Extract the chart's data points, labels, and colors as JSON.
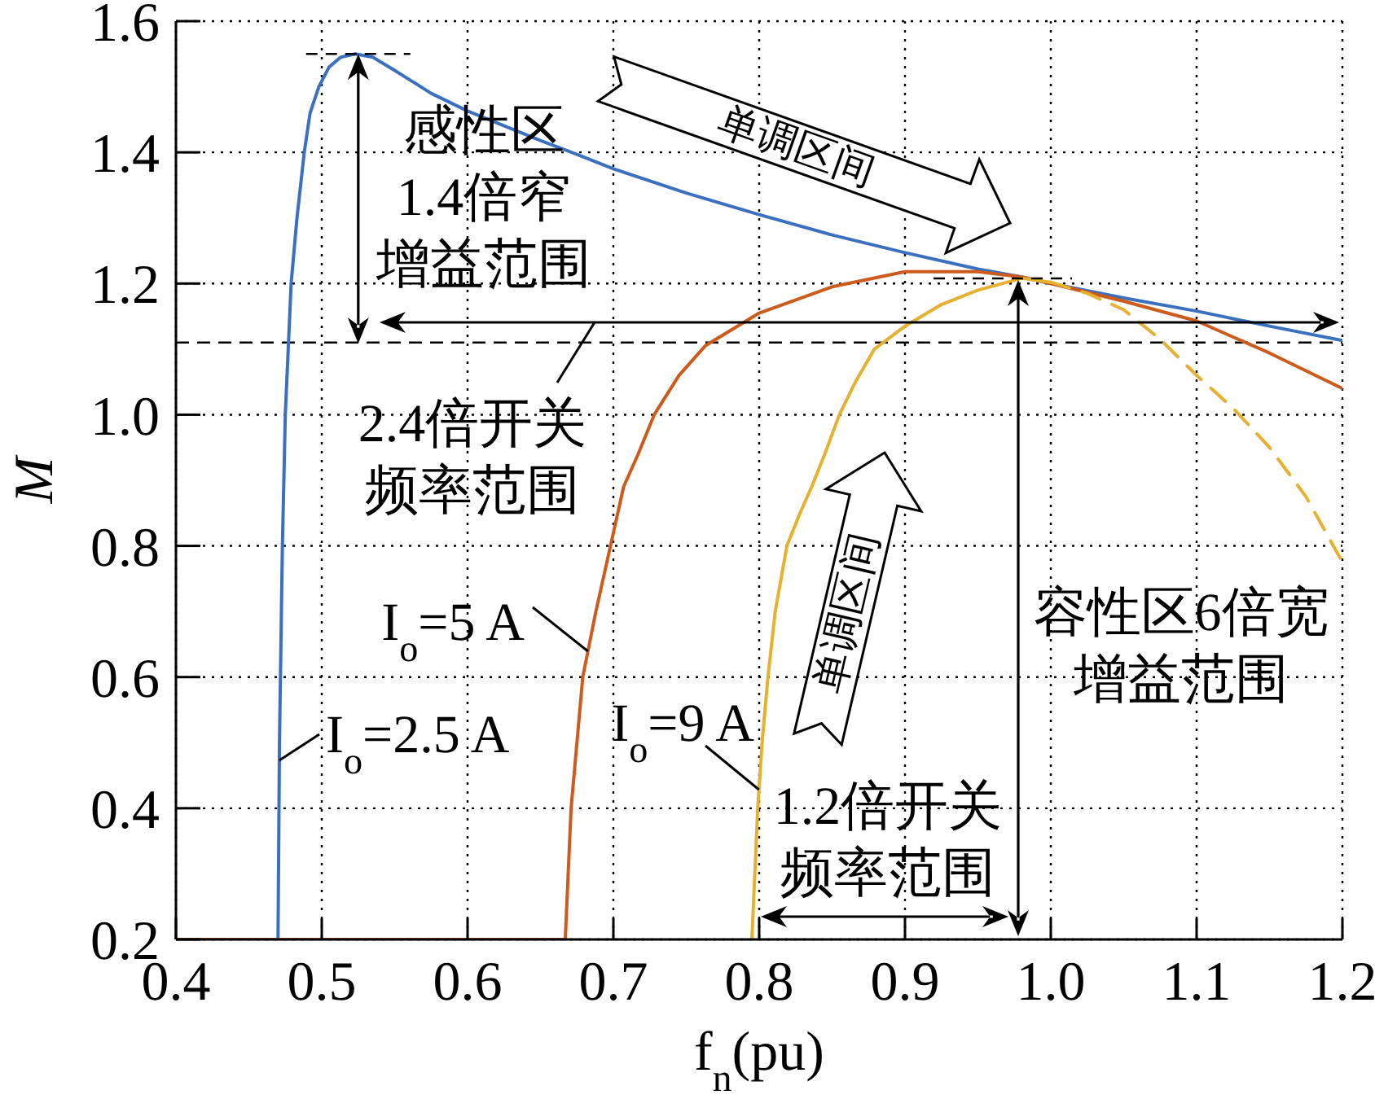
{
  "chart_data": {
    "type": "line",
    "xlabel": "f$_{n}$(pu)",
    "ylabel": "M",
    "xlim": [
      0.4,
      1.2
    ],
    "ylim": [
      0.2,
      1.6
    ],
    "xticks": [
      0.4,
      0.5,
      0.6,
      0.7,
      0.8,
      0.9,
      {
        "value": 1,
        "label": "1.0"
      },
      1.1,
      1.2
    ],
    "yticks": [
      0.2,
      0.4,
      0.6,
      0.8,
      {
        "value": 1,
        "label": "1.0"
      },
      1.2,
      1.4,
      1.6
    ],
    "grid": true,
    "legend": false,
    "marker": "none",
    "series": [
      {
        "name": "I$_{o}$=2.5 A",
        "color": "#3b6fc0",
        "line_style": "solid",
        "x": [
          0.47,
          0.471,
          0.473,
          0.475,
          0.479,
          0.483,
          0.488,
          0.492,
          0.498,
          0.505,
          0.513,
          0.523,
          0.535,
          0.55,
          0.575,
          0.6,
          0.65,
          0.675,
          0.7,
          0.75,
          0.8,
          0.85,
          0.9,
          0.95,
          0.98,
          1.0,
          1.05,
          1.1,
          1.15,
          1.2
        ],
        "values": [
          0.2,
          0.5,
          0.8,
          1.0,
          1.2,
          1.3,
          1.4,
          1.46,
          1.5,
          1.53,
          1.545,
          1.55,
          1.545,
          1.525,
          1.49,
          1.463,
          1.418,
          1.397,
          1.375,
          1.338,
          1.305,
          1.274,
          1.247,
          1.222,
          1.21,
          1.2,
          1.178,
          1.158,
          1.135,
          1.113
        ]
      },
      {
        "name": "I$_{o}$=5 A",
        "color": "#cd5b1c",
        "line_style": "solid",
        "x": [
          0.4,
          0.667,
          0.669,
          0.671,
          0.675,
          0.679,
          0.688,
          0.698,
          0.707,
          0.717,
          0.728,
          0.745,
          0.763,
          0.8,
          0.85,
          0.9,
          0.95,
          0.98,
          1.0,
          1.05,
          1.1,
          1.15,
          1.2
        ],
        "values": [
          0.2,
          0.2,
          0.3,
          0.4,
          0.5,
          0.6,
          0.7,
          0.8,
          0.89,
          0.94,
          1.0,
          1.06,
          1.105,
          1.155,
          1.195,
          1.218,
          1.218,
          1.21,
          1.2,
          1.173,
          1.143,
          1.094,
          1.04
        ]
      },
      {
        "name": "I$_{o}$=9 A",
        "color": "#e6b030",
        "line_style": "solid",
        "x": [
          0.795,
          0.797,
          0.799,
          0.802,
          0.806,
          0.811,
          0.819,
          0.828,
          0.836,
          0.845,
          0.855,
          0.866,
          0.879,
          0.9,
          0.925,
          0.95,
          0.98,
          1.0
        ],
        "values": [
          0.2,
          0.3,
          0.4,
          0.5,
          0.6,
          0.7,
          0.8,
          0.85,
          0.89,
          0.94,
          1.0,
          1.05,
          1.1,
          1.135,
          1.168,
          1.19,
          1.208,
          1.202
        ]
      },
      {
        "color": "#e6b030",
        "line_style": "dashed",
        "x": [
          1.0,
          1.025,
          1.05,
          1.075,
          1.1,
          1.125,
          1.15,
          1.175,
          1.2
        ],
        "values": [
          1.202,
          1.185,
          1.16,
          1.115,
          1.06,
          1.01,
          0.95,
          0.875,
          0.775
        ]
      }
    ],
    "ref_lines": [
      {
        "axis": "y",
        "value": 1.11,
        "color": "#000000",
        "line_style": "dashed"
      }
    ],
    "annotations": [
      {
        "text": "感性区1.4倍窄增益范围",
        "x": 0.525,
        "y": 1.55
      },
      "2.4倍开关频率范围",
      "单调区间",
      "单调区间",
      "1.2倍开关频率范围",
      "容性区6倍宽增益范围"
    ]
  }
}
